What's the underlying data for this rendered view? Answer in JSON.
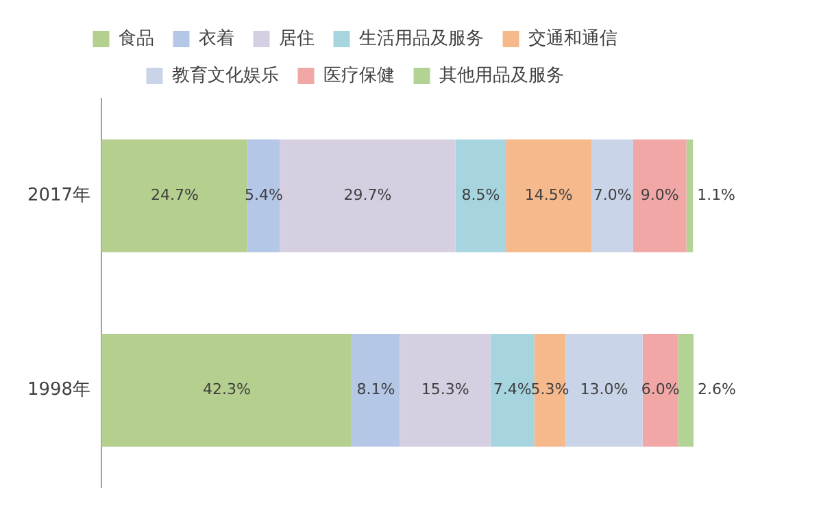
{
  "chart_data": {
    "type": "bar",
    "orientation": "horizontal",
    "stacked": true,
    "categories": [
      "2017年",
      "1998年"
    ],
    "xlim": [
      0,
      100
    ],
    "tick_labels": "y",
    "grid": false,
    "legend": "top",
    "data_labels": true,
    "series": [
      {
        "name": "食品",
        "color": "#b5cf8f",
        "values": [
          24.7,
          42.3
        ],
        "value_labels": [
          "24.7%",
          "42.3%"
        ]
      },
      {
        "name": "衣着",
        "color": "#b4c7e7",
        "values": [
          5.4,
          8.1
        ],
        "value_labels": [
          "5.4%",
          "8.1%"
        ]
      },
      {
        "name": "居住",
        "color": "#d6cfe2",
        "values": [
          29.7,
          15.3
        ],
        "value_labels": [
          "29.7%",
          "15.3%"
        ]
      },
      {
        "name": "生活用品及服务",
        "color": "#a6d5e0",
        "values": [
          8.5,
          7.4
        ],
        "value_labels": [
          "8.5%",
          "7.4%"
        ]
      },
      {
        "name": "交通和通信",
        "color": "#f5b98c",
        "values": [
          14.5,
          5.3
        ],
        "value_labels": [
          "14.5%",
          "5.3%"
        ]
      },
      {
        "name": "教育文化娱乐",
        "color": "#c9d4e8",
        "values": [
          7.0,
          13.0
        ],
        "value_labels": [
          "7.0%",
          "13.0%"
        ]
      },
      {
        "name": "医疗保健",
        "color": "#f2a7a7",
        "values": [
          9.0,
          6.0
        ],
        "value_labels": [
          "9.0%",
          "6.0%"
        ]
      },
      {
        "name": "其他用品及服务",
        "color": "#b3d395",
        "values": [
          1.1,
          2.6
        ],
        "value_labels": [
          "1.1%",
          "2.6%"
        ]
      }
    ]
  }
}
